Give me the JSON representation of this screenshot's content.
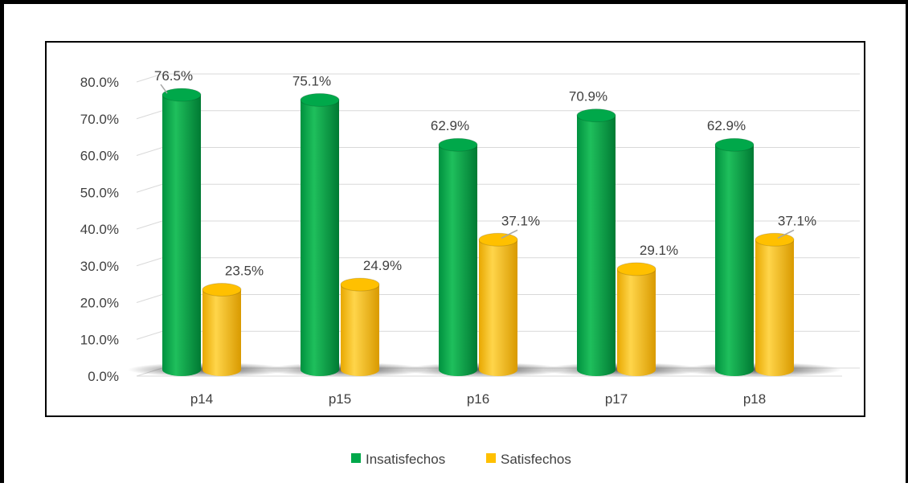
{
  "chart_data": {
    "type": "bar",
    "style": "3d-cylinder",
    "categories": [
      "p14",
      "p15",
      "p16",
      "p17",
      "p18"
    ],
    "series": [
      {
        "name": "Insatisfechos",
        "color": "#00a84a",
        "values": [
          76.5,
          75.1,
          62.9,
          70.9,
          62.9
        ],
        "labels": [
          "76.5%",
          "75.1%",
          "62.9%",
          "70.9%",
          "62.9%"
        ]
      },
      {
        "name": "Satisfechos",
        "color": "#ffc000",
        "values": [
          23.5,
          24.9,
          37.1,
          29.1,
          37.1
        ],
        "labels": [
          "23.5%",
          "24.9%",
          "37.1%",
          "29.1%",
          "37.1%"
        ]
      }
    ],
    "yticks": [
      "0.0%",
      "10.0%",
      "20.0%",
      "30.0%",
      "40.0%",
      "50.0%",
      "60.0%",
      "70.0%",
      "80.0%"
    ],
    "ylim": [
      0,
      80
    ],
    "grid": true,
    "legend_position": "bottom"
  }
}
